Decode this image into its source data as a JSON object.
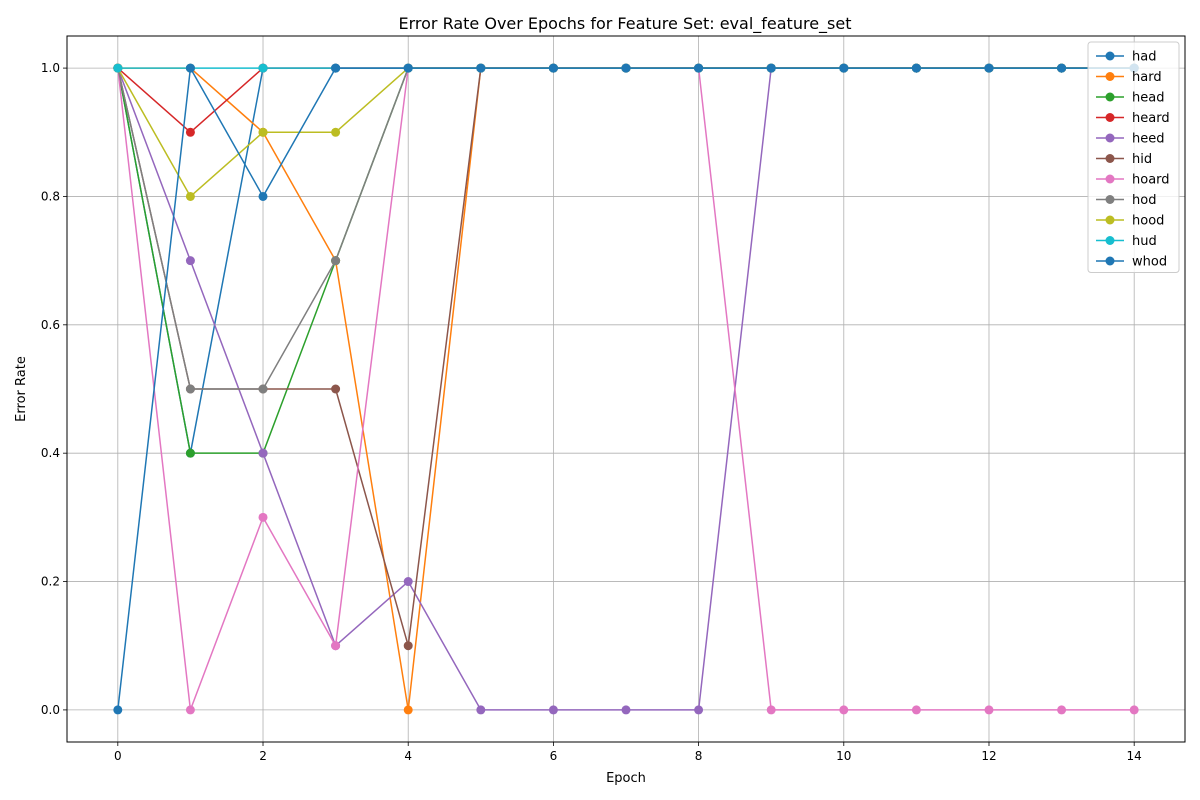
{
  "chart_data": {
    "type": "line",
    "title": "Error Rate Over Epochs for Feature Set: eval_feature_set",
    "xlabel": "Epoch",
    "ylabel": "Error Rate",
    "xlim": [
      -0.7,
      14.7
    ],
    "ylim": [
      -0.05,
      1.05
    ],
    "xticks": [
      0,
      2,
      4,
      6,
      8,
      10,
      12,
      14
    ],
    "yticks": [
      0.0,
      0.2,
      0.4,
      0.6,
      0.8,
      1.0
    ],
    "ytick_labels": [
      "0.0",
      "0.2",
      "0.4",
      "0.6",
      "0.8",
      "1.0"
    ],
    "grid": true,
    "legend_position": "top-right",
    "x": [
      0,
      1,
      2,
      3,
      4,
      5,
      6,
      7,
      8,
      9,
      10,
      11,
      12,
      13,
      14
    ],
    "series": [
      {
        "name": "had",
        "color": "#1f77b4",
        "values": [
          1.0,
          0.4,
          1.0,
          1.0,
          1.0,
          1.0,
          1.0,
          1.0,
          1.0,
          1.0,
          1.0,
          1.0,
          1.0,
          1.0,
          1.0
        ]
      },
      {
        "name": "hard",
        "color": "#ff7f0e",
        "values": [
          1.0,
          1.0,
          0.9,
          0.7,
          0.0,
          1.0,
          1.0,
          1.0,
          1.0,
          1.0,
          1.0,
          1.0,
          1.0,
          1.0,
          1.0
        ]
      },
      {
        "name": "head",
        "color": "#2ca02c",
        "values": [
          1.0,
          0.4,
          0.4,
          0.7,
          1.0,
          1.0,
          1.0,
          1.0,
          1.0,
          1.0,
          1.0,
          1.0,
          1.0,
          1.0,
          1.0
        ]
      },
      {
        "name": "heard",
        "color": "#d62728",
        "values": [
          1.0,
          0.9,
          1.0,
          1.0,
          1.0,
          1.0,
          1.0,
          1.0,
          1.0,
          1.0,
          1.0,
          1.0,
          1.0,
          1.0,
          1.0
        ]
      },
      {
        "name": "heed",
        "color": "#9467bd",
        "values": [
          1.0,
          0.7,
          0.4,
          0.1,
          0.2,
          0.0,
          0.0,
          0.0,
          0.0,
          1.0,
          1.0,
          1.0,
          1.0,
          1.0,
          1.0
        ]
      },
      {
        "name": "hid",
        "color": "#8c564b",
        "values": [
          1.0,
          0.5,
          0.5,
          0.5,
          0.1,
          1.0,
          1.0,
          1.0,
          1.0,
          1.0,
          1.0,
          1.0,
          1.0,
          1.0,
          1.0
        ]
      },
      {
        "name": "hoard",
        "color": "#e377c2",
        "values": [
          1.0,
          0.0,
          0.3,
          0.1,
          1.0,
          1.0,
          1.0,
          1.0,
          1.0,
          0.0,
          0.0,
          0.0,
          0.0,
          0.0,
          0.0
        ]
      },
      {
        "name": "hod",
        "color": "#7f7f7f",
        "values": [
          1.0,
          0.5,
          0.5,
          0.7,
          1.0,
          1.0,
          1.0,
          1.0,
          1.0,
          1.0,
          1.0,
          1.0,
          1.0,
          1.0,
          1.0
        ]
      },
      {
        "name": "hood",
        "color": "#bcbd22",
        "values": [
          1.0,
          0.8,
          0.9,
          0.9,
          1.0,
          1.0,
          1.0,
          1.0,
          1.0,
          1.0,
          1.0,
          1.0,
          1.0,
          1.0,
          1.0
        ]
      },
      {
        "name": "hud",
        "color": "#17becf",
        "values": [
          1.0,
          1.0,
          1.0,
          1.0,
          1.0,
          1.0,
          1.0,
          1.0,
          1.0,
          1.0,
          1.0,
          1.0,
          1.0,
          1.0,
          1.0
        ]
      },
      {
        "name": "whod",
        "color": "#1f77b4",
        "values": [
          0.0,
          1.0,
          0.8,
          1.0,
          1.0,
          1.0,
          1.0,
          1.0,
          1.0,
          1.0,
          1.0,
          1.0,
          1.0,
          1.0,
          1.0
        ]
      }
    ]
  }
}
